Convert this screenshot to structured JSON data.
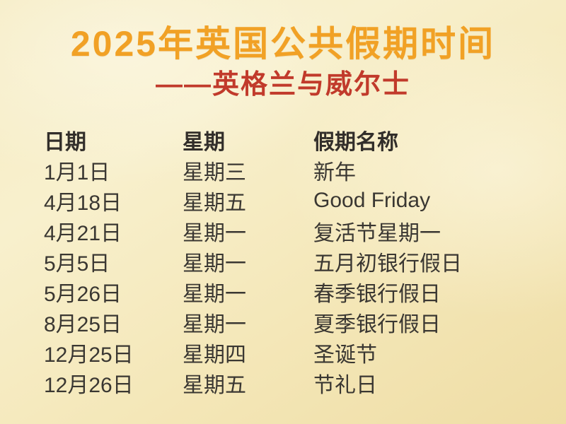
{
  "title": "2025年英国公共假期时间",
  "subtitle": "——英格兰与威尔士",
  "table": {
    "headers": [
      "日期",
      "星期",
      "假期名称"
    ],
    "rows": [
      [
        "1月1日",
        "星期三",
        "新年"
      ],
      [
        "4月18日",
        "星期五",
        "Good Friday"
      ],
      [
        "4月21日",
        "星期一",
        "复活节星期一"
      ],
      [
        "5月5日",
        "星期一",
        "五月初银行假日"
      ],
      [
        "5月26日",
        "星期一",
        "春季银行假日"
      ],
      [
        "8月25日",
        "星期一",
        "夏季银行假日"
      ],
      [
        "12月25日",
        "星期四",
        "圣诞节"
      ],
      [
        "12月26日",
        "星期五",
        "节礼日"
      ]
    ]
  },
  "colors": {
    "title": "#F1A125",
    "subtitle": "#C13A2B",
    "text": "#3A3732",
    "background_light": "#F8F0CD",
    "background_dark": "#EFDDA5"
  }
}
